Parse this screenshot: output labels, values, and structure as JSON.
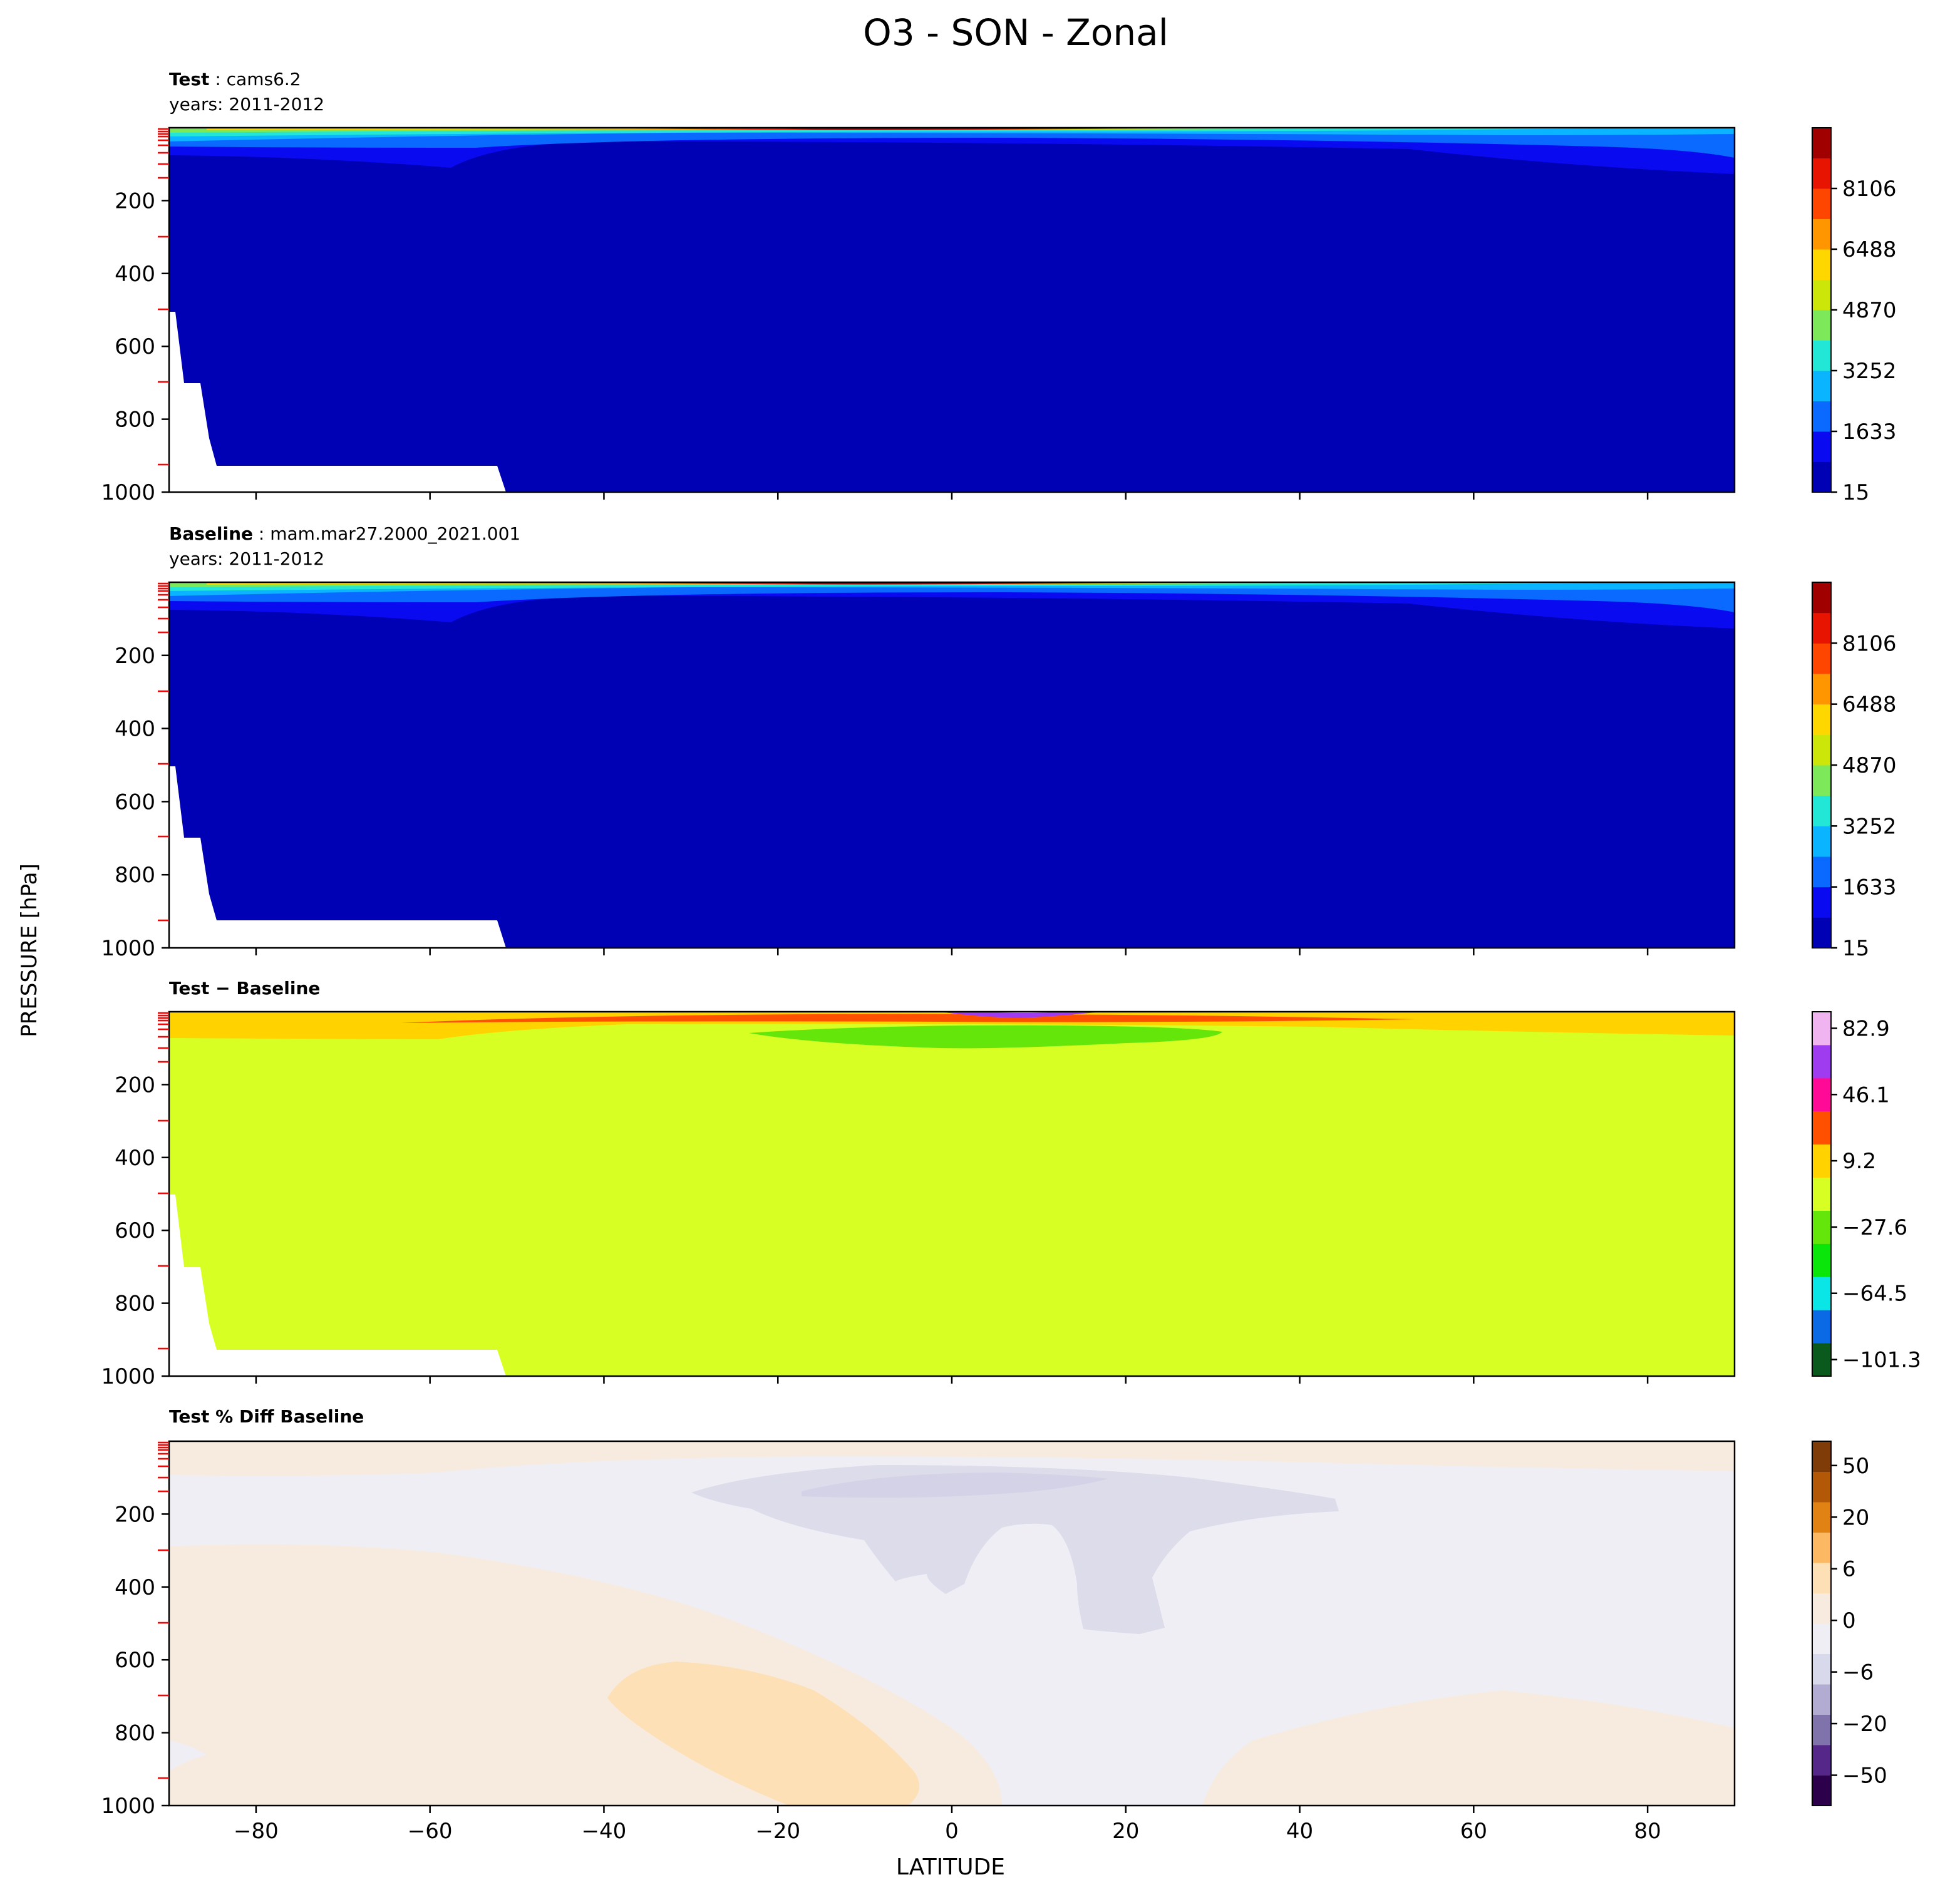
{
  "figure": {
    "title": "O3 - SON - Zonal",
    "xlabel": "LATITUDE",
    "ylabel": "PRESSURE [hPa]"
  },
  "chart_data": [
    {
      "type": "heatmap",
      "subtitle_bold": "Test",
      "subtitle_rest": ": cams6.2",
      "years_label": "years: 2011-2012",
      "xlim": [
        -90,
        90
      ],
      "ylim": [
        1000,
        0
      ],
      "xticks": [
        -80,
        -60,
        -40,
        -20,
        0,
        20,
        40,
        60,
        80
      ],
      "yticks": [
        "200",
        "400",
        "600",
        "800",
        "1000"
      ],
      "colorbar_ticks": [
        "15",
        "1633",
        "3252",
        "4870",
        "6488",
        "8106"
      ],
      "colorbar_colors": [
        "#0000b4",
        "#0a0af0",
        "#0a6aff",
        "#0ab4ff",
        "#22e6d6",
        "#7de85a",
        "#cce60a",
        "#ffd700",
        "#ff9600",
        "#ff4600",
        "#e61400",
        "#a00000"
      ],
      "legend": "right"
    },
    {
      "type": "heatmap",
      "subtitle_bold": "Baseline",
      "subtitle_rest": ": mam.mar27.2000_2021.001",
      "years_label": "years: 2011-2012",
      "xlim": [
        -90,
        90
      ],
      "ylim": [
        1000,
        0
      ],
      "xticks": [
        -80,
        -60,
        -40,
        -20,
        0,
        20,
        40,
        60,
        80
      ],
      "yticks": [
        "200",
        "400",
        "600",
        "800",
        "1000"
      ],
      "colorbar_ticks": [
        "15",
        "1633",
        "3252",
        "4870",
        "6488",
        "8106"
      ],
      "colorbar_colors": [
        "#0000b4",
        "#0a0af0",
        "#0a6aff",
        "#0ab4ff",
        "#22e6d6",
        "#7de85a",
        "#cce60a",
        "#ffd700",
        "#ff9600",
        "#ff4600",
        "#e61400",
        "#a00000"
      ],
      "legend": "right"
    },
    {
      "type": "heatmap",
      "subtitle_bold": "Test − Baseline",
      "subtitle_rest": "",
      "years_label": "",
      "xlim": [
        -90,
        90
      ],
      "ylim": [
        1000,
        0
      ],
      "xticks": [
        -80,
        -60,
        -40,
        -20,
        0,
        20,
        40,
        60,
        80
      ],
      "yticks": [
        "200",
        "400",
        "600",
        "800",
        "1000"
      ],
      "colorbar_ticks": [
        "−101.3",
        "−64.5",
        "−27.6",
        "9.2",
        "46.1",
        "82.9"
      ],
      "colorbar_colors": [
        "#0a5a1e",
        "#0a6ae6",
        "#0ae6e6",
        "#0ae60a",
        "#64e60a",
        "#d7ff23",
        "#ffd200",
        "#ff5000",
        "#ff0a96",
        "#a03cf0",
        "#f0b4f0"
      ],
      "legend": "right"
    },
    {
      "type": "heatmap",
      "subtitle_bold": "Test % Diff Baseline",
      "subtitle_rest": "",
      "years_label": "",
      "xlim": [
        -90,
        90
      ],
      "ylim": [
        1000,
        0
      ],
      "xticks": [
        -80,
        -60,
        -40,
        -20,
        0,
        20,
        40,
        60,
        80
      ],
      "yticks": [
        "200",
        "400",
        "600",
        "800",
        "1000"
      ],
      "colorbar_ticks": [
        "−50",
        "−20",
        "−6",
        "0",
        "6",
        "20",
        "50"
      ],
      "colorbar_colors": [
        "#2d004b",
        "#542788",
        "#8073ac",
        "#b2abd2",
        "#d8daeb",
        "#eeeef4",
        "#f7ebe0",
        "#fee0b6",
        "#fdb863",
        "#e08214",
        "#b35806",
        "#7f3b08"
      ],
      "legend": "right"
    }
  ]
}
